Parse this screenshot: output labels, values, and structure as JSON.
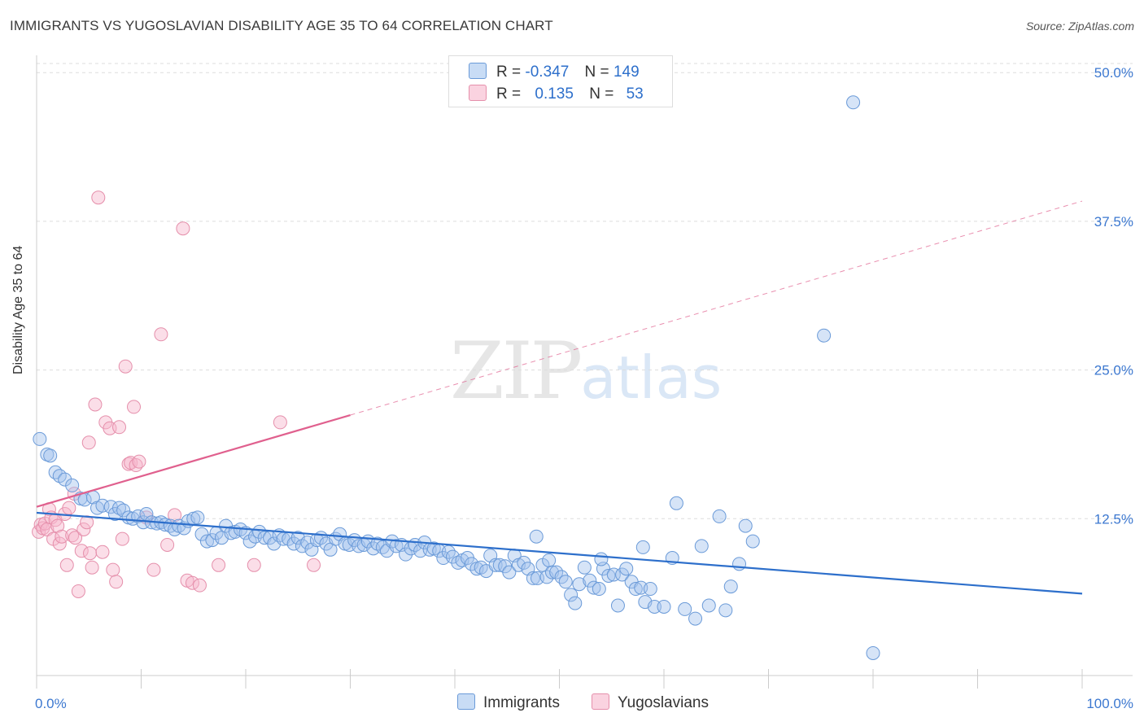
{
  "header": {
    "title": "IMMIGRANTS VS YUGOSLAVIAN DISABILITY AGE 35 TO 64 CORRELATION CHART",
    "source": "Source: ZipAtlas.com"
  },
  "watermark": {
    "zip": "ZIP",
    "atlas": "atlas"
  },
  "legend": {
    "row1": {
      "r_label": "R =",
      "r_value": "-0.347",
      "n_label": "N =",
      "n_value": "149"
    },
    "row2": {
      "r_label": "R =",
      "r_value": "0.135",
      "n_label": "N =",
      "n_value": "53"
    }
  },
  "bottom_legend": {
    "series1": "Immigrants",
    "series2": "Yugoslavians"
  },
  "colors": {
    "blue_fill": "rgba(164,196,238,0.45)",
    "blue_stroke": "#6a9ad8",
    "blue_line": "#2d6fcb",
    "pink_fill": "rgba(246,182,203,0.45)",
    "pink_stroke": "#e58fab",
    "pink_line": "#e0608e",
    "grid": "#dddddd",
    "tick_label": "#3c78d0"
  },
  "chart_data": {
    "type": "scatter",
    "title": "IMMIGRANTS VS YUGOSLAVIAN DISABILITY AGE 35 TO 64 CORRELATION CHART",
    "xlabel": "",
    "ylabel": "Disability Age 35 to 64",
    "xlim": [
      0,
      100
    ],
    "ylim": [
      0,
      52
    ],
    "x_tick_labels": [
      "0.0%",
      "100.0%"
    ],
    "y_ticks": [
      12.5,
      25.0,
      37.5,
      50.0
    ],
    "y_tick_labels": [
      "12.5%",
      "25.0%",
      "37.5%",
      "50.0%"
    ],
    "series": [
      {
        "name": "Immigrants",
        "R": -0.347,
        "N": 149,
        "trend": {
          "x": [
            0,
            100
          ],
          "y": [
            13.0,
            6.2
          ],
          "dashed_from": null
        },
        "points": [
          [
            0.3,
            19.2
          ],
          [
            1.0,
            17.9
          ],
          [
            1.3,
            17.8
          ],
          [
            1.8,
            16.4
          ],
          [
            2.2,
            16.1
          ],
          [
            2.7,
            15.8
          ],
          [
            3.4,
            15.3
          ],
          [
            4.2,
            14.2
          ],
          [
            4.6,
            14.1
          ],
          [
            5.4,
            14.3
          ],
          [
            5.8,
            13.4
          ],
          [
            6.3,
            13.6
          ],
          [
            7.1,
            13.5
          ],
          [
            7.5,
            12.9
          ],
          [
            7.9,
            13.4
          ],
          [
            8.3,
            13.2
          ],
          [
            8.8,
            12.6
          ],
          [
            9.2,
            12.5
          ],
          [
            9.7,
            12.7
          ],
          [
            10.2,
            12.2
          ],
          [
            10.5,
            12.9
          ],
          [
            11.0,
            12.2
          ],
          [
            11.5,
            12.1
          ],
          [
            11.9,
            12.2
          ],
          [
            12.3,
            12.0
          ],
          [
            12.8,
            11.9
          ],
          [
            13.2,
            11.6
          ],
          [
            13.6,
            11.9
          ],
          [
            14.1,
            11.7
          ],
          [
            14.5,
            12.3
          ],
          [
            15.0,
            12.5
          ],
          [
            15.4,
            12.6
          ],
          [
            15.8,
            11.2
          ],
          [
            16.3,
            10.6
          ],
          [
            16.8,
            10.7
          ],
          [
            17.2,
            11.3
          ],
          [
            17.7,
            10.9
          ],
          [
            18.1,
            11.9
          ],
          [
            18.6,
            11.3
          ],
          [
            19.0,
            11.4
          ],
          [
            19.5,
            11.6
          ],
          [
            20.0,
            11.3
          ],
          [
            20.4,
            10.6
          ],
          [
            20.9,
            11.0
          ],
          [
            21.3,
            11.4
          ],
          [
            21.8,
            10.9
          ],
          [
            22.3,
            10.9
          ],
          [
            22.7,
            10.4
          ],
          [
            23.2,
            11.1
          ],
          [
            23.6,
            10.8
          ],
          [
            24.1,
            10.8
          ],
          [
            24.6,
            10.4
          ],
          [
            25.0,
            10.9
          ],
          [
            25.4,
            10.2
          ],
          [
            25.9,
            10.5
          ],
          [
            26.3,
            9.9
          ],
          [
            26.8,
            10.7
          ],
          [
            27.2,
            10.9
          ],
          [
            27.7,
            10.4
          ],
          [
            28.1,
            9.9
          ],
          [
            28.6,
            10.8
          ],
          [
            29.0,
            11.2
          ],
          [
            29.5,
            10.4
          ],
          [
            29.9,
            10.3
          ],
          [
            30.4,
            10.7
          ],
          [
            30.8,
            10.2
          ],
          [
            31.3,
            10.3
          ],
          [
            31.7,
            10.6
          ],
          [
            32.2,
            10.0
          ],
          [
            32.6,
            10.4
          ],
          [
            33.1,
            10.1
          ],
          [
            33.5,
            9.8
          ],
          [
            34.0,
            10.6
          ],
          [
            34.4,
            10.2
          ],
          [
            34.9,
            10.3
          ],
          [
            35.3,
            9.5
          ],
          [
            35.8,
            10.0
          ],
          [
            36.2,
            10.3
          ],
          [
            36.7,
            9.8
          ],
          [
            37.1,
            10.5
          ],
          [
            37.6,
            9.9
          ],
          [
            38.0,
            10.0
          ],
          [
            38.5,
            9.8
          ],
          [
            38.9,
            9.2
          ],
          [
            39.4,
            9.7
          ],
          [
            39.8,
            9.3
          ],
          [
            40.3,
            8.8
          ],
          [
            40.7,
            9.0
          ],
          [
            41.2,
            9.2
          ],
          [
            41.6,
            8.7
          ],
          [
            42.1,
            8.3
          ],
          [
            42.5,
            8.4
          ],
          [
            43.0,
            8.1
          ],
          [
            43.4,
            9.4
          ],
          [
            43.9,
            8.6
          ],
          [
            44.3,
            8.6
          ],
          [
            44.8,
            8.5
          ],
          [
            45.2,
            8.0
          ],
          [
            45.7,
            9.4
          ],
          [
            46.1,
            8.6
          ],
          [
            46.6,
            8.8
          ],
          [
            47.0,
            8.3
          ],
          [
            47.5,
            7.5
          ],
          [
            47.9,
            7.5
          ],
          [
            48.4,
            8.6
          ],
          [
            48.8,
            7.6
          ],
          [
            49.3,
            8.0
          ],
          [
            49.7,
            8.0
          ],
          [
            50.2,
            7.6
          ],
          [
            50.6,
            7.2
          ],
          [
            51.1,
            6.1
          ],
          [
            51.5,
            5.4
          ],
          [
            51.9,
            7.0
          ],
          [
            52.4,
            8.4
          ],
          [
            52.9,
            7.3
          ],
          [
            53.3,
            6.7
          ],
          [
            53.8,
            6.6
          ],
          [
            54.2,
            8.3
          ],
          [
            54.7,
            7.7
          ],
          [
            55.2,
            7.8
          ],
          [
            55.6,
            5.2
          ],
          [
            56.0,
            7.8
          ],
          [
            56.4,
            8.3
          ],
          [
            56.9,
            7.2
          ],
          [
            57.3,
            6.6
          ],
          [
            57.8,
            6.7
          ],
          [
            58.2,
            5.5
          ],
          [
            58.7,
            6.6
          ],
          [
            59.1,
            5.1
          ],
          [
            60.0,
            5.1
          ],
          [
            60.8,
            9.2
          ],
          [
            61.2,
            13.8
          ],
          [
            62.0,
            4.9
          ],
          [
            63.0,
            4.1
          ],
          [
            63.6,
            10.2
          ],
          [
            64.3,
            5.2
          ],
          [
            65.3,
            12.7
          ],
          [
            65.9,
            4.8
          ],
          [
            66.4,
            6.8
          ],
          [
            67.2,
            8.7
          ],
          [
            67.8,
            11.9
          ],
          [
            68.5,
            10.6
          ],
          [
            75.3,
            27.9
          ],
          [
            78.1,
            47.5
          ],
          [
            80.0,
            1.2
          ],
          [
            58.0,
            10.1
          ],
          [
            54.0,
            9.1
          ],
          [
            49.0,
            9.0
          ],
          [
            47.8,
            11.0
          ]
        ]
      },
      {
        "name": "Yugoslavians",
        "R": 0.135,
        "N": 53,
        "trend": {
          "x": [
            0,
            100
          ],
          "y": [
            13.5,
            39.2
          ],
          "solid_until_x": 30
        },
        "points": [
          [
            0.2,
            11.4
          ],
          [
            0.4,
            12.0
          ],
          [
            0.6,
            11.7
          ],
          [
            0.8,
            12.1
          ],
          [
            1.0,
            11.6
          ],
          [
            1.2,
            13.3
          ],
          [
            1.4,
            12.6
          ],
          [
            1.6,
            10.8
          ],
          [
            1.8,
            12.4
          ],
          [
            2.0,
            11.9
          ],
          [
            2.2,
            10.4
          ],
          [
            2.4,
            11.0
          ],
          [
            2.7,
            12.9
          ],
          [
            2.9,
            8.6
          ],
          [
            3.1,
            13.4
          ],
          [
            3.4,
            11.1
          ],
          [
            3.7,
            10.9
          ],
          [
            4.0,
            6.4
          ],
          [
            4.3,
            9.8
          ],
          [
            4.5,
            11.6
          ],
          [
            4.8,
            12.2
          ],
          [
            5.1,
            9.6
          ],
          [
            5.3,
            8.4
          ],
          [
            5.6,
            22.1
          ],
          [
            5.9,
            39.5
          ],
          [
            6.3,
            9.7
          ],
          [
            6.6,
            20.6
          ],
          [
            7.0,
            20.1
          ],
          [
            7.3,
            8.2
          ],
          [
            7.6,
            7.2
          ],
          [
            7.9,
            20.2
          ],
          [
            8.2,
            10.8
          ],
          [
            8.5,
            25.3
          ],
          [
            8.8,
            17.1
          ],
          [
            9.0,
            17.2
          ],
          [
            9.3,
            21.9
          ],
          [
            9.5,
            17.0
          ],
          [
            9.8,
            17.3
          ],
          [
            10.5,
            12.6
          ],
          [
            11.2,
            8.2
          ],
          [
            11.9,
            28.0
          ],
          [
            12.5,
            10.3
          ],
          [
            13.2,
            12.8
          ],
          [
            14.0,
            36.9
          ],
          [
            14.4,
            7.3
          ],
          [
            14.9,
            7.1
          ],
          [
            15.6,
            6.9
          ],
          [
            17.4,
            8.6
          ],
          [
            20.8,
            8.6
          ],
          [
            23.3,
            20.6
          ],
          [
            26.5,
            8.6
          ],
          [
            3.6,
            14.6
          ],
          [
            5.0,
            18.9
          ]
        ]
      }
    ]
  }
}
